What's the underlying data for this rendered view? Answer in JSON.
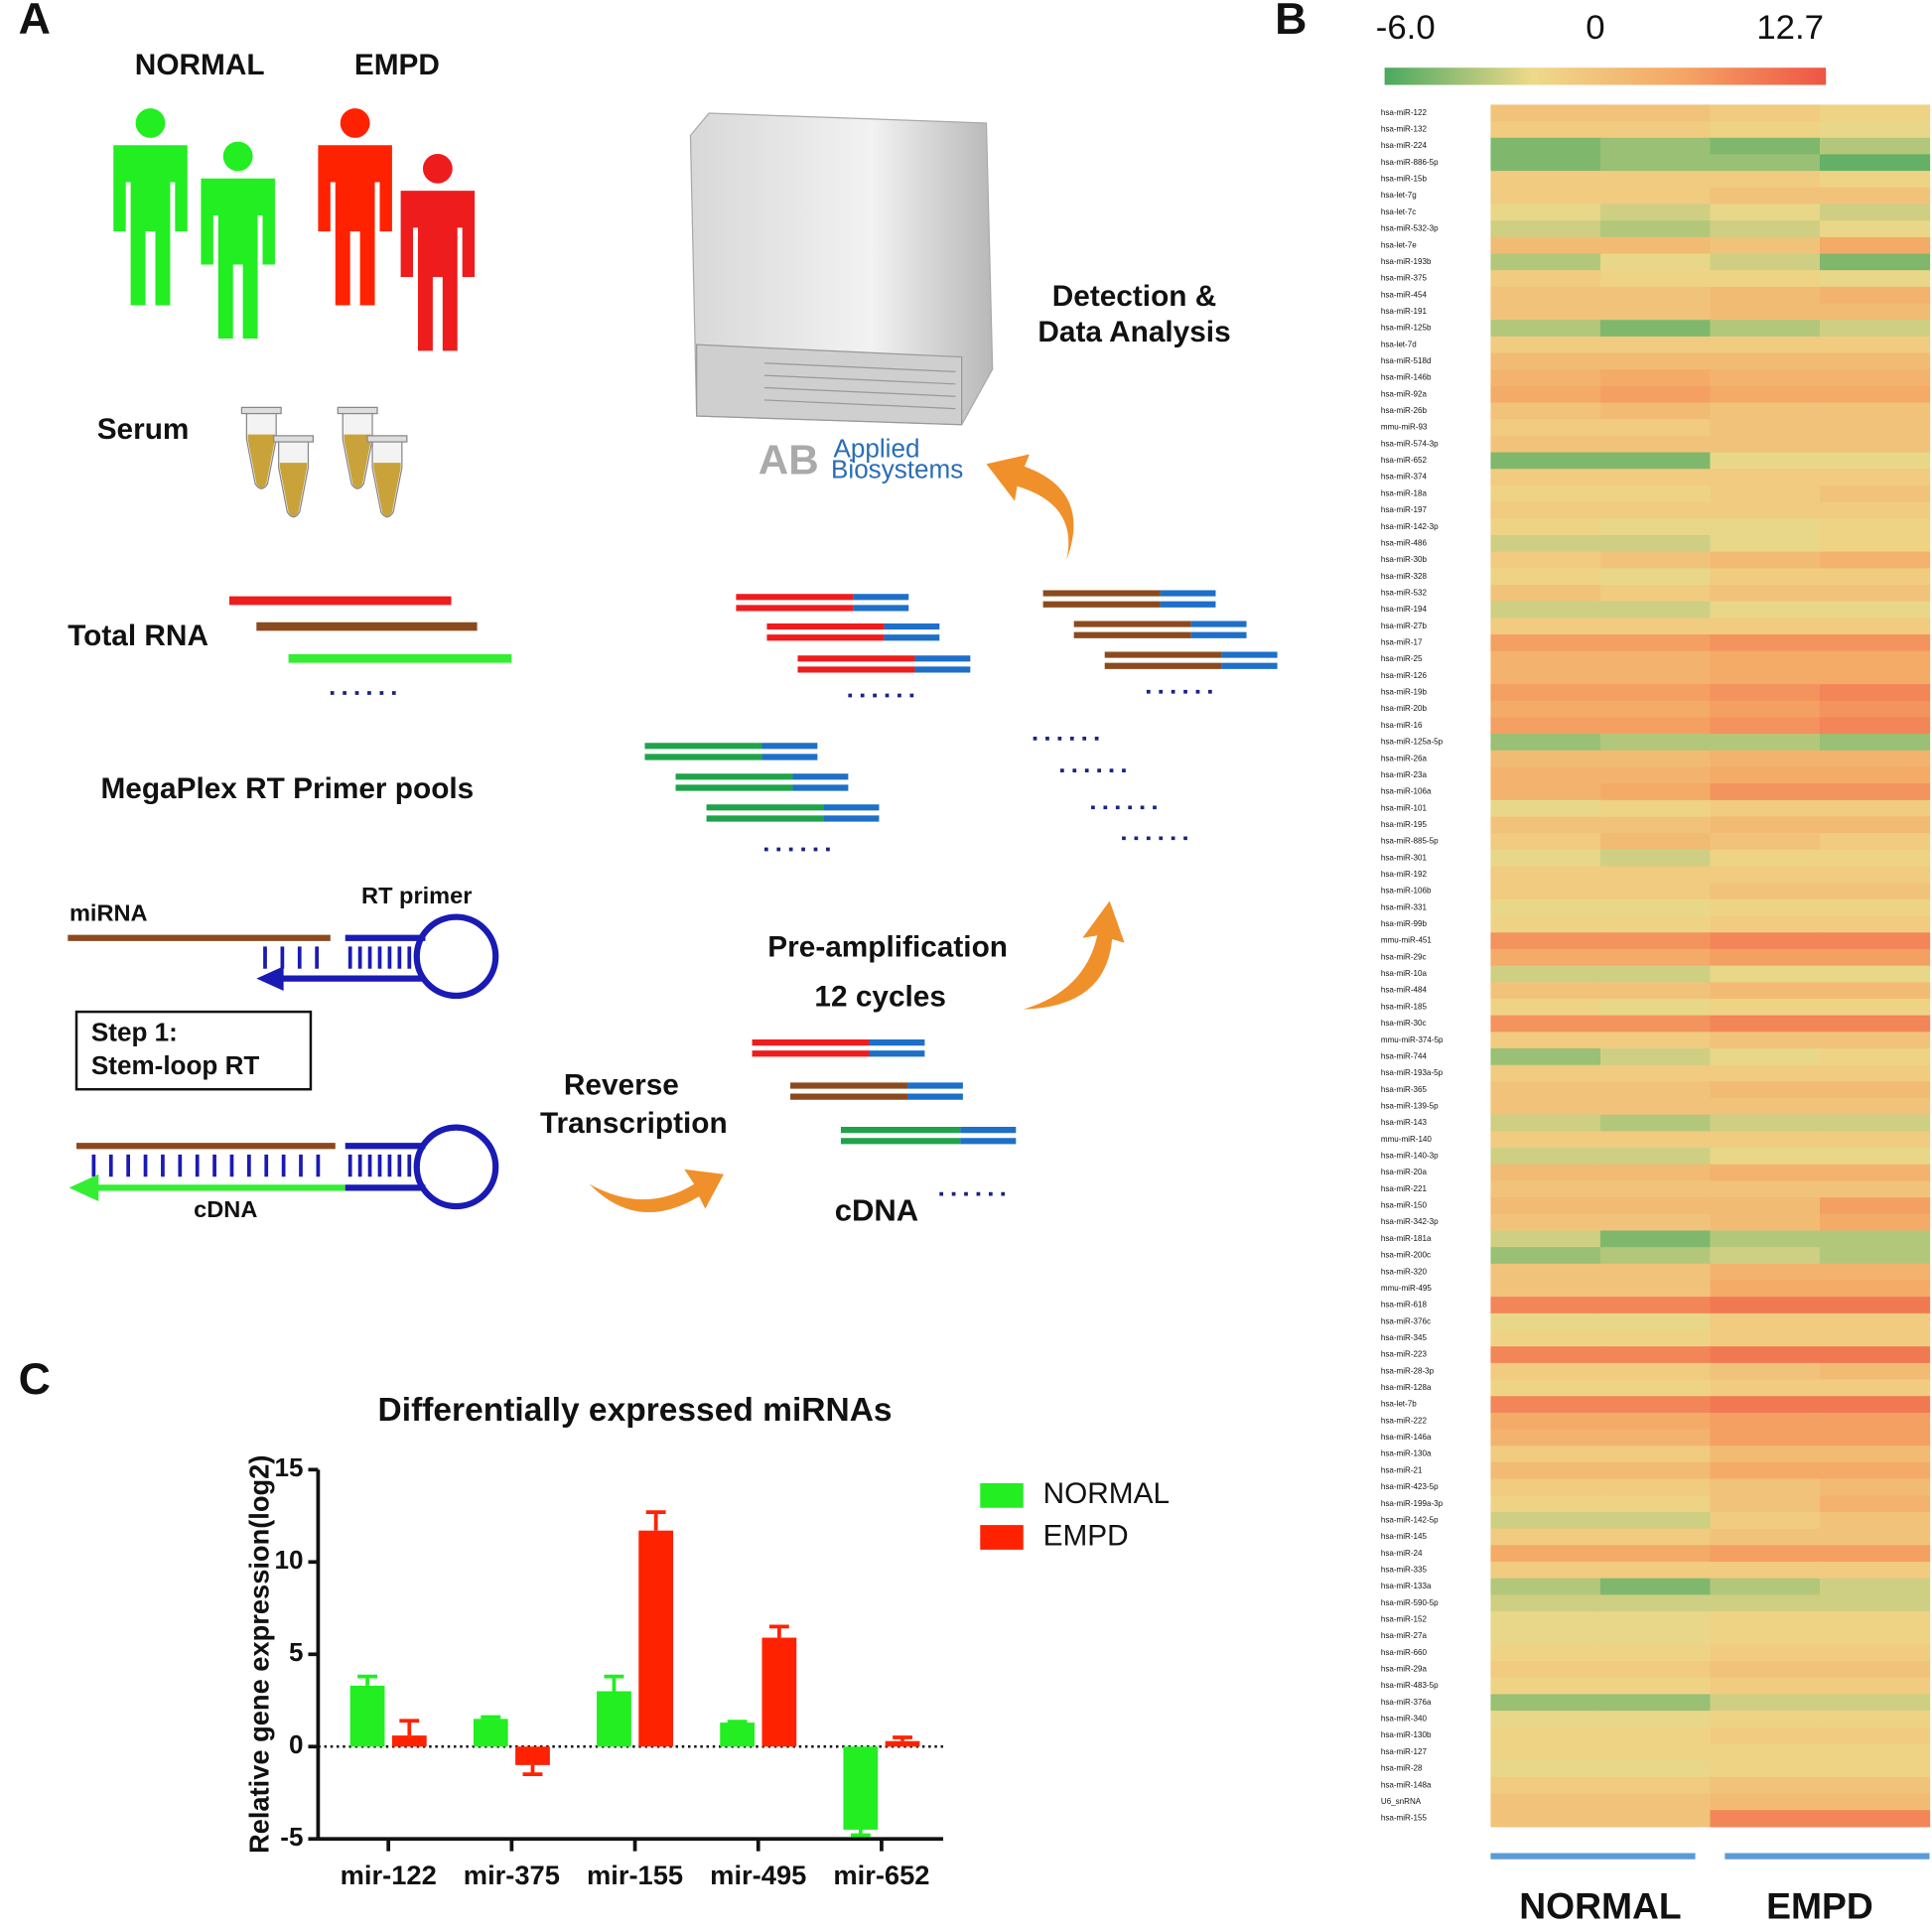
{
  "panel_a": {
    "label": "A",
    "groups": [
      "NORMAL",
      "EMPD"
    ],
    "serum": "Serum",
    "total_rna": "Total RNA",
    "primer_pools": "MegaPlex RT Primer pools",
    "mirna": "miRNA",
    "rt_primer": "RT primer",
    "step": [
      "Step 1:",
      "Stem-loop RT"
    ],
    "cdna_left": "cDNA",
    "reverse_transcription": [
      "Reverse",
      "Transcription"
    ],
    "pre_amplification": [
      "Pre-amplification",
      "12 cycles"
    ],
    "cdna": "cDNA",
    "detection": [
      "Detection &",
      "Data Analysis"
    ],
    "logo": [
      "Applied",
      "Biosystems"
    ]
  },
  "chart_data": [
    {
      "type": "heatmap",
      "panel_label": "B",
      "vlim": [
        -6,
        12.7
      ],
      "vticks": [
        {
          "value": -6,
          "label": "-6.0"
        },
        0,
        12.7
      ],
      "colors": [
        "#4aa860",
        "#eed98a",
        "#f5a765",
        "#ee5544"
      ],
      "group_color": "#5b9bd5",
      "groups": [
        "NORMAL",
        "EMPD"
      ],
      "rows": [
        "hsa-miR-122",
        "hsa-miR-132",
        "hsa-miR-224",
        "hsa-miR-886-5p",
        "hsa-miR-15b",
        "hsa-let-7g",
        "hsa-let-7c",
        "hsa-miR-532-3p",
        "hsa-let-7e",
        "hsa-miR-193b",
        "hsa-miR-375",
        "hsa-miR-454",
        "hsa-miR-191",
        "hsa-miR-125b",
        "hsa-let-7d",
        "hsa-miR-518d",
        "hsa-miR-146b",
        "hsa-miR-92a",
        "hsa-miR-26b",
        "mmu-miR-93",
        "hsa-miR-574-3p",
        "hsa-miR-652",
        "hsa-miR-374",
        "hsa-miR-18a",
        "hsa-miR-197",
        "hsa-miR-142-3p",
        "hsa-miR-486",
        "hsa-miR-30b",
        "hsa-miR-328",
        "hsa-miR-532",
        "hsa-miR-194",
        "hsa-miR-27b",
        "hsa-miR-17",
        "hsa-miR-25",
        "hsa-miR-126",
        "hsa-miR-19b",
        "hsa-miR-20b",
        "hsa-miR-16",
        "hsa-miR-125a-5p",
        "hsa-miR-26a",
        "hsa-miR-23a",
        "hsa-miR-106a",
        "hsa-miR-101",
        "hsa-miR-195",
        "hsa-miR-885-5p",
        "hsa-miR-301",
        "hsa-miR-192",
        "hsa-miR-106b",
        "hsa-miR-331",
        "hsa-miR-99b",
        "mmu-miR-451",
        "hsa-miR-29c",
        "hsa-miR-10a",
        "hsa-miR-484",
        "hsa-miR-185",
        "hsa-miR-30c",
        "mmu-miR-374-5p",
        "hsa-miR-744",
        "hsa-miR-193a-5p",
        "hsa-miR-365",
        "hsa-miR-139-5p",
        "hsa-miR-143",
        "mmu-miR-140",
        "hsa-miR-140-3p",
        "hsa-miR-20a",
        "hsa-miR-221",
        "hsa-miR-150",
        "hsa-miR-342-3p",
        "hsa-miR-181a",
        "hsa-miR-200c",
        "hsa-miR-320",
        "mmu-miR-495",
        "hsa-miR-618",
        "hsa-miR-376c",
        "hsa-miR-345",
        "hsa-miR-223",
        "hsa-miR-28-3p",
        "hsa-miR-128a",
        "hsa-let-7b",
        "hsa-miR-222",
        "hsa-miR-146a",
        "hsa-miR-130a",
        "hsa-miR-21",
        "hsa-miR-423-5p",
        "hsa-miR-199a-3p",
        "hsa-miR-142-5p",
        "hsa-miR-145",
        "hsa-miR-24",
        "hsa-miR-335",
        "hsa-miR-133a",
        "hsa-miR-590-5p",
        "hsa-miR-152",
        "hsa-miR-27a",
        "hsa-miR-660",
        "hsa-miR-29a",
        "hsa-miR-483-5p",
        "hsa-miR-376a",
        "hsa-miR-340",
        "hsa-miR-130b",
        "hsa-miR-127",
        "hsa-miR-28",
        "hsa-miR-148a",
        "U6_snRNA",
        "hsa-miR-155"
      ],
      "values": [
        [
          3,
          3,
          2,
          1
        ],
        [
          2,
          2,
          1,
          0
        ],
        [
          -4,
          -3,
          -4,
          -2
        ],
        [
          -4,
          -3,
          -3,
          -5
        ],
        [
          2,
          2,
          2,
          1
        ],
        [
          2,
          2,
          3,
          3
        ],
        [
          0,
          -1,
          0,
          -1
        ],
        [
          -1,
          -2,
          -1,
          0
        ],
        [
          4,
          4,
          3,
          6
        ],
        [
          -2,
          0,
          -1,
          -4
        ],
        [
          2,
          1,
          1,
          0
        ],
        [
          3,
          3,
          4,
          5
        ],
        [
          3,
          3,
          4,
          4
        ],
        [
          -2,
          -4,
          -2,
          -1
        ],
        [
          2,
          2,
          2,
          2
        ],
        [
          4,
          4,
          4,
          4
        ],
        [
          5,
          6,
          5,
          5
        ],
        [
          6,
          7,
          6,
          6
        ],
        [
          3,
          4,
          3,
          3
        ],
        [
          2,
          2,
          3,
          3
        ],
        [
          3,
          3,
          3,
          3
        ],
        [
          -4,
          -4,
          0,
          0
        ],
        [
          2,
          2,
          2,
          2
        ],
        [
          1,
          1,
          2,
          3
        ],
        [
          2,
          2,
          2,
          2
        ],
        [
          1,
          0,
          0,
          1
        ],
        [
          -1,
          -1,
          0,
          1
        ],
        [
          2,
          3,
          4,
          5
        ],
        [
          1,
          0,
          2,
          2
        ],
        [
          3,
          2,
          3,
          3
        ],
        [
          -1,
          -1,
          0,
          0
        ],
        [
          2,
          2,
          2,
          2
        ],
        [
          7,
          7,
          8,
          8
        ],
        [
          5,
          5,
          6,
          6
        ],
        [
          5,
          5,
          6,
          6
        ],
        [
          7,
          7,
          8,
          9
        ],
        [
          6,
          6,
          7,
          8
        ],
        [
          7,
          7,
          8,
          9
        ],
        [
          -3,
          -2,
          -2,
          -3
        ],
        [
          4,
          4,
          5,
          5
        ],
        [
          5,
          5,
          6,
          6
        ],
        [
          5,
          6,
          8,
          8
        ],
        [
          0,
          1,
          2,
          2
        ],
        [
          3,
          3,
          4,
          4
        ],
        [
          2,
          4,
          3,
          2
        ],
        [
          0,
          -1,
          1,
          1
        ],
        [
          2,
          2,
          2,
          2
        ],
        [
          2,
          2,
          3,
          3
        ],
        [
          0,
          0,
          1,
          1
        ],
        [
          1,
          1,
          2,
          2
        ],
        [
          8,
          8,
          9,
          9
        ],
        [
          6,
          6,
          7,
          7
        ],
        [
          -1,
          -1,
          0,
          0
        ],
        [
          3,
          3,
          4,
          4
        ],
        [
          1,
          0,
          1,
          1
        ],
        [
          8,
          8,
          9,
          9
        ],
        [
          2,
          2,
          3,
          3
        ],
        [
          -3,
          -1,
          0,
          1
        ],
        [
          2,
          2,
          2,
          2
        ],
        [
          3,
          3,
          4,
          4
        ],
        [
          3,
          3,
          3,
          3
        ],
        [
          -1,
          -2,
          -1,
          -1
        ],
        [
          2,
          2,
          2,
          2
        ],
        [
          -1,
          -1,
          0,
          0
        ],
        [
          4,
          4,
          5,
          5
        ],
        [
          3,
          3,
          3,
          3
        ],
        [
          4,
          4,
          4,
          7
        ],
        [
          3,
          3,
          4,
          6
        ],
        [
          -1,
          -4,
          -2,
          -2
        ],
        [
          -3,
          -2,
          -1,
          -2
        ],
        [
          3,
          3,
          5,
          5
        ],
        [
          3,
          3,
          6,
          6
        ],
        [
          9,
          9,
          10,
          10
        ],
        [
          0,
          0,
          2,
          2
        ],
        [
          1,
          1,
          2,
          2
        ],
        [
          9,
          9,
          10,
          10
        ],
        [
          2,
          2,
          3,
          4
        ],
        [
          1,
          1,
          2,
          2
        ],
        [
          9,
          9,
          10,
          10
        ],
        [
          6,
          6,
          7,
          7
        ],
        [
          5,
          5,
          7,
          7
        ],
        [
          2,
          2,
          4,
          4
        ],
        [
          4,
          4,
          6,
          6
        ],
        [
          2,
          2,
          3,
          4
        ],
        [
          1,
          1,
          3,
          5
        ],
        [
          -1,
          -1,
          2,
          3
        ],
        [
          2,
          2,
          3,
          3
        ],
        [
          6,
          6,
          7,
          7
        ],
        [
          2,
          2,
          2,
          2
        ],
        [
          -2,
          -4,
          -2,
          -1
        ],
        [
          -1,
          -1,
          -1,
          -1
        ],
        [
          0,
          0,
          1,
          1
        ],
        [
          0,
          0,
          1,
          1
        ],
        [
          1,
          1,
          2,
          2
        ],
        [
          2,
          2,
          3,
          3
        ],
        [
          1,
          1,
          2,
          2
        ],
        [
          -3,
          -3,
          -1,
          -1
        ],
        [
          0,
          0,
          1,
          1
        ],
        [
          1,
          1,
          2,
          2
        ],
        [
          1,
          1,
          1,
          1
        ],
        [
          0,
          0,
          1,
          1
        ],
        [
          2,
          2,
          3,
          3
        ],
        [
          3,
          3,
          4,
          4
        ],
        [
          3,
          3,
          9,
          9
        ]
      ]
    },
    {
      "type": "bar",
      "panel_label": "C",
      "title": "Differentially expressed miRNAs",
      "ylabel": "Relative gene expression(log2)",
      "categories": [
        "mir-122",
        "mir-375",
        "mir-155",
        "mir-495",
        "mir-652"
      ],
      "series": [
        {
          "name": "NORMAL",
          "color": "#22ee22",
          "values": [
            3.3,
            1.5,
            3.0,
            1.3,
            -4.5
          ],
          "errors": [
            0.5,
            0.1,
            0.8,
            0.05,
            0.3
          ]
        },
        {
          "name": "EMPD",
          "color": "#ff2200",
          "values": [
            0.6,
            -1.0,
            11.7,
            5.9,
            0.3
          ],
          "errors": [
            0.8,
            0.5,
            1.0,
            0.6,
            0.2
          ]
        }
      ],
      "ylim": [
        -5,
        15
      ],
      "yticks": [
        -5,
        0,
        5,
        10,
        15
      ],
      "legend": "upper right"
    }
  ]
}
